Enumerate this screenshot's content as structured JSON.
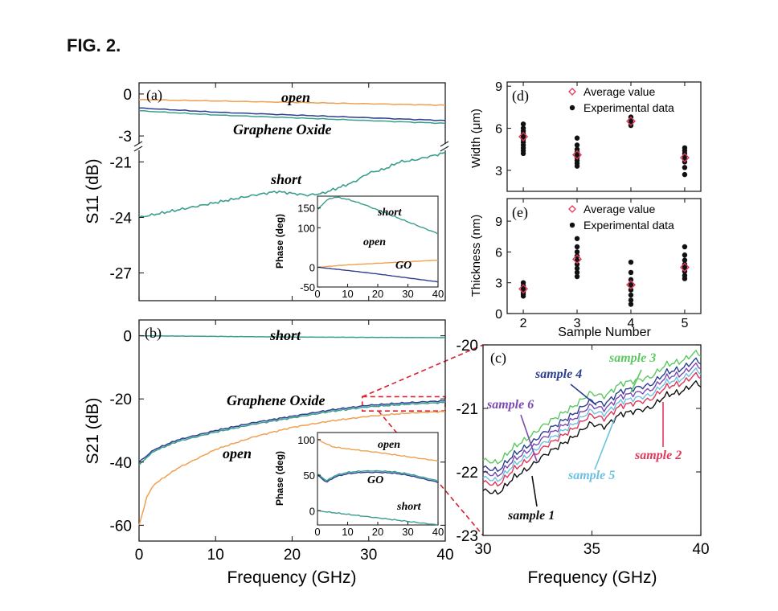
{
  "figure": {
    "title": "FIG. 2."
  },
  "colors": {
    "orange": "#f0a050",
    "teal": "#3a9e8e",
    "navy": "#2d3f8f",
    "purple": "#7a4ab0",
    "red": "#e0385a",
    "green": "#5cc860",
    "lightblue": "#6ec0e0",
    "black": "#111111"
  },
  "chart_data": [
    {
      "id": "a",
      "type": "line",
      "panel_label": "(a)",
      "xlabel": "",
      "ylabel": "S11 (dB)",
      "xlim": [
        0,
        40
      ],
      "broken_y_axis": true,
      "ylim_upper": [
        -3.8,
        0.8
      ],
      "ylim_lower": [
        -28.5,
        -20.2
      ],
      "yticks_upper": [
        0,
        -3
      ],
      "yticks_lower": [
        -21,
        -24,
        -27
      ],
      "series": [
        {
          "name": "open",
          "color": "orange",
          "x": [
            0,
            10,
            20,
            30,
            40
          ],
          "y": [
            -0.4,
            -0.5,
            -0.6,
            -0.7,
            -0.8
          ]
        },
        {
          "name": "Graphene Oxide",
          "color": "navy",
          "x": [
            0,
            10,
            20,
            30,
            40
          ],
          "y": [
            -1.0,
            -1.3,
            -1.5,
            -1.7,
            -1.9
          ]
        },
        {
          "name": "",
          "color": "teal",
          "x": [
            0,
            10,
            20,
            30,
            40
          ],
          "y": [
            -1.2,
            -1.5,
            -1.7,
            -1.9,
            -2.1
          ]
        },
        {
          "name": "short",
          "color": "teal",
          "x": [
            0,
            5,
            10,
            15,
            18,
            20,
            22,
            24,
            26,
            28,
            30,
            32,
            34,
            36,
            38,
            40
          ],
          "y": [
            -24.0,
            -23.6,
            -23.2,
            -22.8,
            -22.6,
            -22.7,
            -22.8,
            -22.7,
            -22.4,
            -22.1,
            -21.6,
            -21.4,
            -21.0,
            -20.9,
            -20.7,
            -20.5
          ]
        }
      ],
      "annotations": [
        "open",
        "Graphene Oxide",
        "short"
      ],
      "inset": {
        "type": "line",
        "ylabel": "Phase (deg)",
        "xlim": [
          0,
          40
        ],
        "ylim": [
          -50,
          180
        ],
        "xticks": [
          0,
          10,
          20,
          30,
          40
        ],
        "yticks": [
          150,
          100,
          0,
          -50
        ],
        "series": [
          {
            "name": "short",
            "color": "teal",
            "x": [
              0,
              3,
              6,
              10,
              15,
              20,
              25,
              30,
              35,
              40
            ],
            "y": [
              145,
              170,
              178,
              172,
              160,
              145,
              130,
              115,
              100,
              85
            ]
          },
          {
            "name": "open",
            "color": "orange",
            "x": [
              0,
              10,
              20,
              30,
              40
            ],
            "y": [
              0,
              6,
              10,
              14,
              18
            ]
          },
          {
            "name": "GO",
            "color": "navy",
            "x": [
              0,
              10,
              20,
              30,
              40
            ],
            "y": [
              0,
              -8,
              -17,
              -27,
              -37
            ]
          }
        ]
      }
    },
    {
      "id": "b",
      "type": "line",
      "panel_label": "(b)",
      "xlabel": "Frequency (GHz)",
      "ylabel": "S21 (dB)",
      "xlim": [
        0,
        40
      ],
      "ylim": [
        -65,
        5
      ],
      "xticks": [
        0,
        10,
        20,
        30,
        40
      ],
      "yticks": [
        0,
        -20,
        -40,
        -60
      ],
      "series": [
        {
          "name": "short",
          "color": "teal",
          "x": [
            0,
            10,
            20,
            30,
            40
          ],
          "y": [
            0,
            -0.2,
            -0.4,
            -0.5,
            -0.6
          ]
        },
        {
          "name": "Graphene Oxide",
          "color": "navy",
          "x": [
            0,
            1,
            2,
            5,
            10,
            15,
            20,
            25,
            30,
            35,
            40
          ],
          "y": [
            -40,
            -38,
            -36,
            -33,
            -30,
            -27.5,
            -25.5,
            -23.5,
            -22,
            -21.2,
            -20.6
          ]
        },
        {
          "name": "",
          "color": "teal",
          "x": [
            0,
            1,
            2,
            5,
            10,
            15,
            20,
            25,
            30,
            35,
            40
          ],
          "y": [
            -41,
            -38.5,
            -36.5,
            -33.5,
            -30.5,
            -28,
            -26,
            -24,
            -22.5,
            -21.7,
            -21.1
          ]
        },
        {
          "name": "open",
          "color": "orange",
          "x": [
            0,
            0.5,
            1,
            2,
            5,
            10,
            15,
            20,
            25,
            30,
            35,
            40
          ],
          "y": [
            -60,
            -56,
            -51,
            -47,
            -42,
            -36,
            -32,
            -29,
            -27,
            -25.5,
            -24.5,
            -24
          ]
        }
      ],
      "annotations": [
        "short",
        "Graphene Oxide",
        "open"
      ],
      "inset": {
        "type": "line",
        "ylabel": "Phase (deg)",
        "xlim": [
          0,
          40
        ],
        "ylim": [
          -20,
          110
        ],
        "xticks": [
          0,
          10,
          20,
          30,
          40
        ],
        "yticks": [
          100,
          50,
          0
        ],
        "series": [
          {
            "name": "open",
            "color": "orange",
            "x": [
              0,
              5,
              10,
              20,
              30,
              40
            ],
            "y": [
              100,
              90,
              87,
              82,
              76,
              70
            ]
          },
          {
            "name": "GO",
            "color": "navy",
            "x": [
              0,
              3,
              6,
              10,
              15,
              20,
              25,
              30,
              35,
              40
            ],
            "y": [
              50,
              40,
              48,
              52,
              54,
              54,
              53,
              50,
              45,
              40
            ]
          },
          {
            "name": "",
            "color": "teal",
            "x": [
              0,
              3,
              6,
              10,
              15,
              20,
              25,
              30,
              35,
              40
            ],
            "y": [
              52,
              42,
              50,
              54,
              56,
              56,
              55,
              52,
              47,
              42
            ]
          },
          {
            "name": "short",
            "color": "teal",
            "x": [
              0,
              10,
              20,
              30,
              40
            ],
            "y": [
              0,
              -5,
              -10,
              -15,
              -20
            ]
          }
        ]
      }
    },
    {
      "id": "c",
      "type": "line",
      "panel_label": "(c)",
      "xlabel": "Frequency (GHz)",
      "ylabel": "",
      "xlim": [
        30,
        40
      ],
      "ylim": [
        -23,
        -20
      ],
      "xticks": [
        30,
        35,
        40
      ],
      "yticks": [
        -20,
        -21,
        -22,
        -23
      ],
      "x": [
        30,
        30.7,
        31.4,
        32.1,
        32.8,
        33.5,
        34.2,
        34.9,
        35.6,
        36.3,
        37,
        37.7,
        38.4,
        39.1,
        39.8,
        40
      ],
      "series": [
        {
          "name": "sample 3",
          "color": "green",
          "offset": 0.24
        },
        {
          "name": "sample 4",
          "color": "navy",
          "offset": 0.12
        },
        {
          "name": "sample 6",
          "color": "purple",
          "offset": 0.04
        },
        {
          "name": "sample 5",
          "color": "lightblue",
          "offset": -0.04
        },
        {
          "name": "sample 2",
          "color": "red",
          "offset": -0.11
        },
        {
          "name": "sample 1",
          "color": "black",
          "offset": -0.24
        }
      ],
      "base_y": [
        -22.05,
        -22.1,
        -21.85,
        -21.7,
        -21.5,
        -21.35,
        -21.2,
        -21.0,
        -21.05,
        -20.85,
        -20.8,
        -20.75,
        -20.55,
        -20.5,
        -20.35,
        -20.4
      ]
    },
    {
      "id": "d",
      "type": "scatter",
      "panel_label": "(d)",
      "xlabel": "",
      "ylabel": "Width (μm)",
      "xlim": [
        1.7,
        5.3
      ],
      "ylim": [
        1.5,
        9.3
      ],
      "yticks": [
        3,
        6,
        9
      ],
      "legend": [
        "Average value",
        "Experimental data"
      ],
      "average": [
        {
          "x": 2,
          "y": 5.4
        },
        {
          "x": 3,
          "y": 4.1
        },
        {
          "x": 4,
          "y": 6.5
        },
        {
          "x": 5,
          "y": 3.9
        }
      ],
      "experimental": [
        {
          "x": 2,
          "y": [
            6.3,
            6.0,
            5.8,
            5.6,
            5.4,
            5.2,
            5.0,
            4.8,
            4.6,
            4.4,
            4.2
          ]
        },
        {
          "x": 3,
          "y": [
            5.3,
            4.8,
            4.5,
            4.3,
            4.1,
            3.9,
            3.7,
            3.5,
            3.3
          ]
        },
        {
          "x": 4,
          "y": [
            6.8,
            6.6,
            6.4,
            6.2
          ]
        },
        {
          "x": 5,
          "y": [
            4.6,
            4.4,
            4.2,
            4.0,
            3.8,
            3.6,
            3.2,
            2.7
          ]
        }
      ]
    },
    {
      "id": "e",
      "type": "scatter",
      "panel_label": "(e)",
      "xlabel": "Sample Number",
      "ylabel": "Thickness (nm)",
      "xlim": [
        1.7,
        5.3
      ],
      "ylim": [
        0,
        11.2
      ],
      "xticks": [
        2,
        3,
        4,
        5
      ],
      "yticks": [
        0,
        3,
        6,
        9
      ],
      "legend": [
        "Average value",
        "Experimental data"
      ],
      "average": [
        {
          "x": 2,
          "y": 2.4
        },
        {
          "x": 3,
          "y": 5.3
        },
        {
          "x": 4,
          "y": 2.8
        },
        {
          "x": 5,
          "y": 4.5
        }
      ],
      "experimental": [
        {
          "x": 2,
          "y": [
            3.0,
            2.7,
            2.5,
            2.3,
            2.1,
            1.9,
            1.7
          ]
        },
        {
          "x": 3,
          "y": [
            7.3,
            6.5,
            6.0,
            5.6,
            5.2,
            4.8,
            4.4,
            4.0,
            3.6
          ]
        },
        {
          "x": 4,
          "y": [
            5.0,
            4.0,
            3.3,
            2.8,
            2.3,
            1.8,
            1.3,
            0.9
          ]
        },
        {
          "x": 5,
          "y": [
            6.5,
            5.7,
            5.2,
            4.8,
            4.5,
            4.1,
            3.7,
            3.4
          ]
        }
      ]
    }
  ]
}
